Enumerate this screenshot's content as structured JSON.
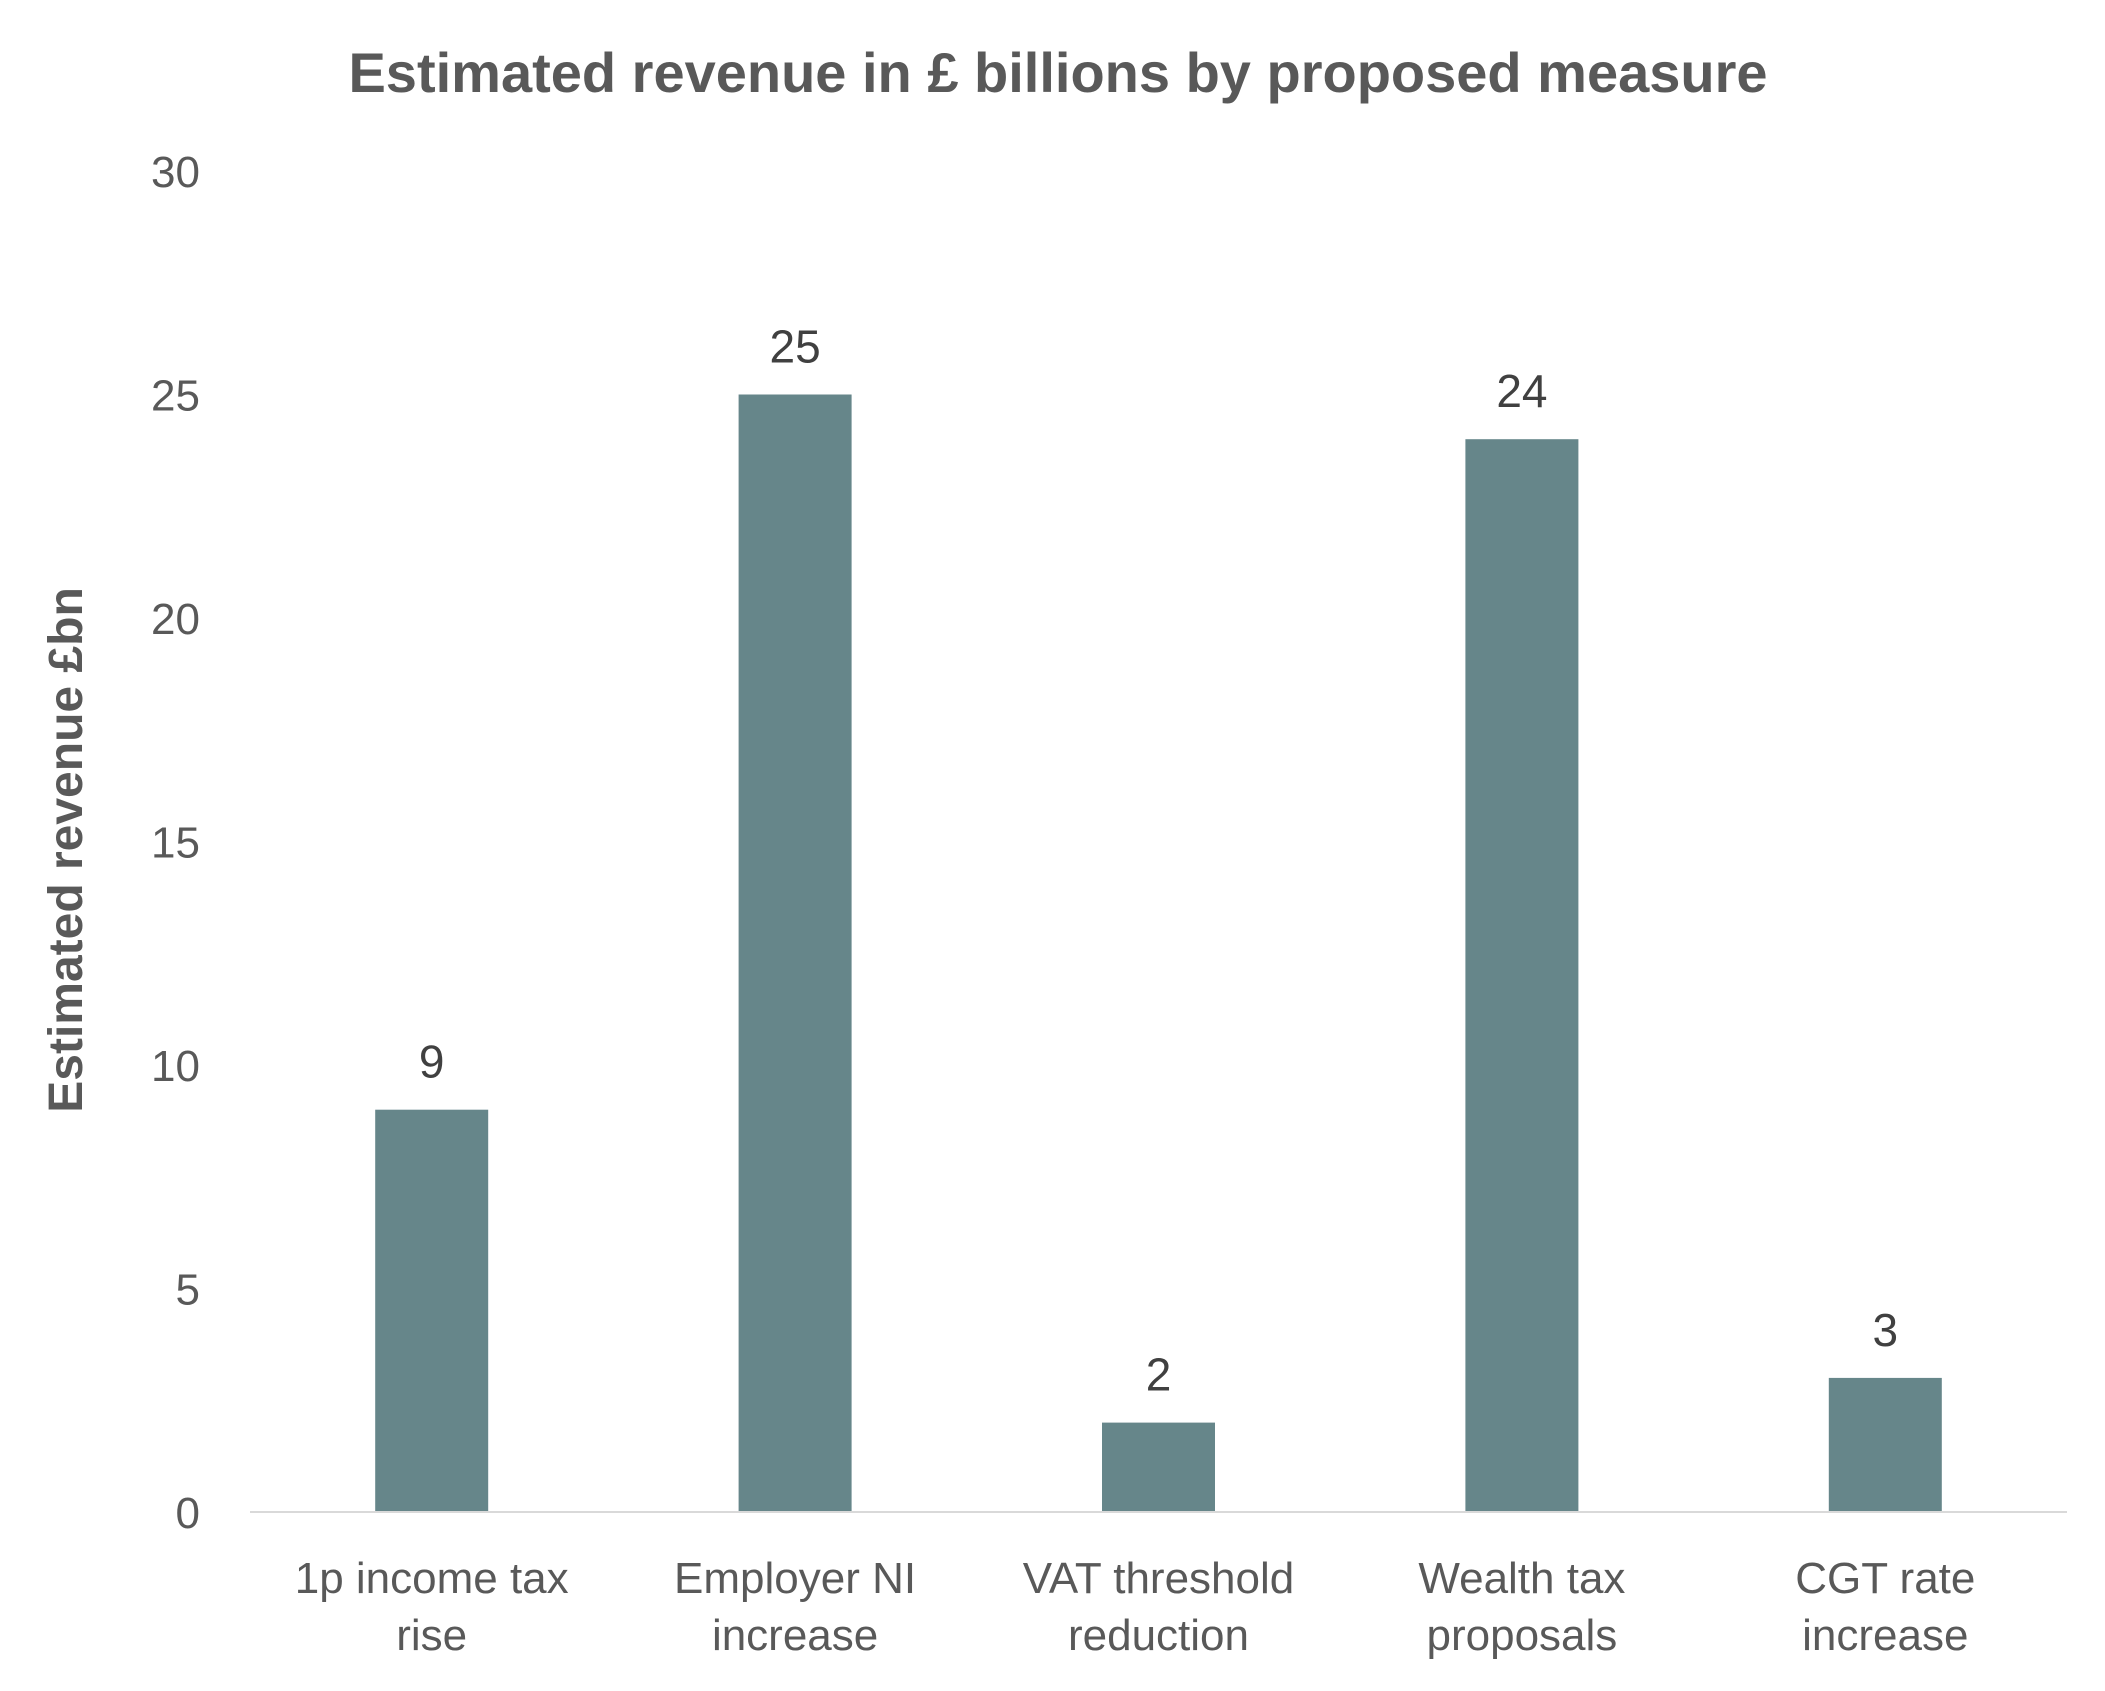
{
  "chart_data": {
    "type": "bar",
    "title": "Estimated revenue in £ billions by proposed measure",
    "xlabel": "",
    "ylabel": "Estimated revenue £bn",
    "categories": [
      [
        "1p income tax",
        "rise"
      ],
      [
        "Employer NI",
        "increase"
      ],
      [
        "VAT threshold",
        "reduction"
      ],
      [
        "Wealth tax",
        "proposals"
      ],
      [
        "CGT rate",
        "increase"
      ]
    ],
    "values": [
      9,
      25,
      2,
      24,
      3
    ],
    "data_labels": [
      "9",
      "25",
      "2",
      "24",
      "3"
    ],
    "ylim": [
      0,
      30
    ],
    "yticks": [
      "0",
      "5",
      "10",
      "15",
      "20",
      "25",
      "30"
    ],
    "grid": false,
    "legend": "none",
    "colors": {
      "bar": "#66868a",
      "text": "#595959",
      "label": "#404040",
      "axis": "#d9d9d9"
    }
  }
}
